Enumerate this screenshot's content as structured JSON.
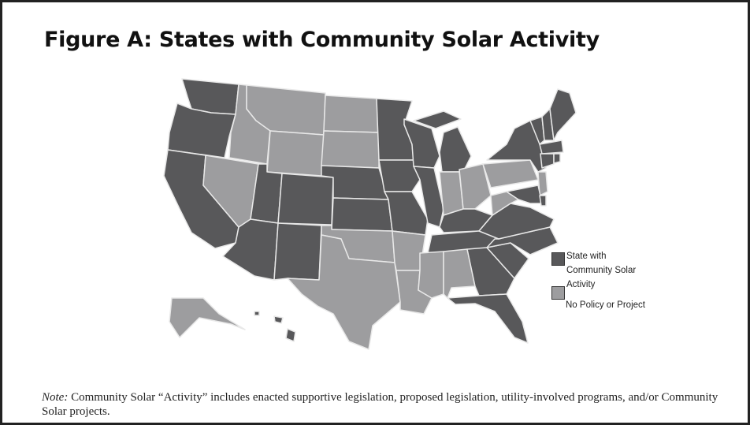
{
  "title": "Figure A: States with Community Solar Activity",
  "colors": {
    "activity": "#58585a",
    "no_policy": "#9d9d9f",
    "border": "#e8e8e8"
  },
  "legend": [
    {
      "label": "State with Community Solar Activity",
      "lines": [
        "State with",
        "Community Solar",
        "Activity"
      ],
      "status": "activity"
    },
    {
      "label": "No Policy or Project",
      "status": "no_policy"
    }
  ],
  "states": {
    "activity": [
      "WA",
      "OR",
      "CA",
      "UT",
      "AZ",
      "CO",
      "NM",
      "NE",
      "KS",
      "MN",
      "IA",
      "MO",
      "WI",
      "IL",
      "MI",
      "KY",
      "TN",
      "GA",
      "SC",
      "NC",
      "VA",
      "MD",
      "DE",
      "NY",
      "VT",
      "NH",
      "ME",
      "MA",
      "CT",
      "RI",
      "FL",
      "HI"
    ],
    "no_policy": [
      "MT",
      "ID",
      "NV",
      "WY",
      "ND",
      "SD",
      "OK",
      "TX",
      "AR",
      "LA",
      "MS",
      "AL",
      "IN",
      "OH",
      "WV",
      "PA",
      "NJ",
      "AK"
    ]
  },
  "note": {
    "prefix": "Note:",
    "text": " Community Solar “Activity” includes enacted supportive legislation, proposed legislation, utility-involved programs, and/or Community Solar projects."
  }
}
